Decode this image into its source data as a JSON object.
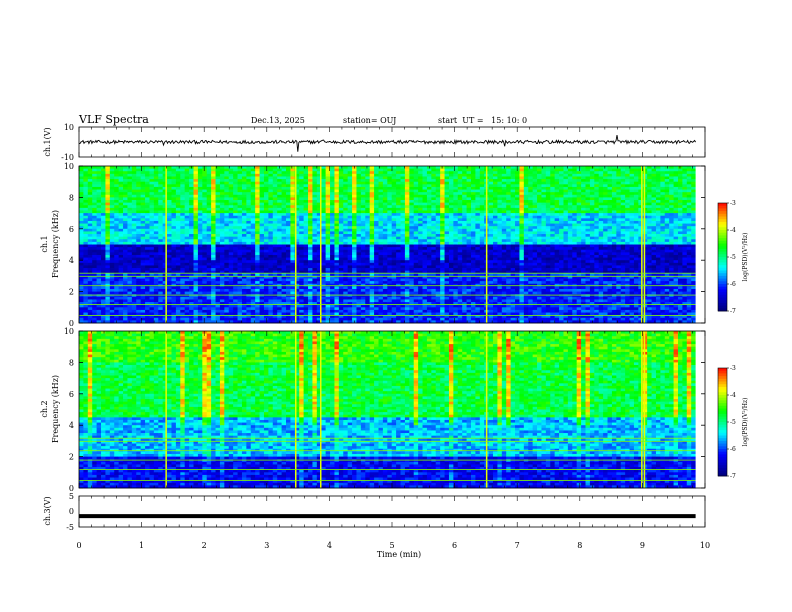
{
  "header": {
    "title": "VLF Spectra",
    "date": "Dec.13, 2025",
    "station": "station= OUJ",
    "start": "start  UT =   15: 10: 0"
  },
  "chart_data": [
    {
      "panel": "ch1-waveform",
      "type": "line",
      "ylabel": "ch.1(V)",
      "ylim": [
        -10,
        10
      ],
      "yticks": [
        "10",
        "-10"
      ],
      "baseline": 0,
      "color": "#000000"
    },
    {
      "panel": "ch1-spectrogram",
      "type": "heatmap",
      "ylabel": "ch.1\nFrequency (kHz)",
      "ylabel_line1": "ch.1",
      "ylabel_line2": "Frequency (kHz)",
      "ylim": [
        0,
        10
      ],
      "yticks": [
        "0",
        "2",
        "4",
        "6",
        "8",
        "10"
      ],
      "colorbar": {
        "label": "log(PSD)(V²/Hz)",
        "ticks": [
          "-3",
          "-4",
          "-5",
          "-6",
          "-7"
        ],
        "range": [
          -7,
          -3
        ]
      }
    },
    {
      "panel": "ch2-spectrogram",
      "type": "heatmap",
      "ylabel_line1": "ch.2",
      "ylabel_line2": "Frequency (kHz)",
      "ylim": [
        0,
        10
      ],
      "yticks": [
        "0",
        "2",
        "4",
        "6",
        "8",
        "10"
      ],
      "colorbar": {
        "label": "log(PSD)(V²/Hz)",
        "ticks": [
          "-3",
          "-4",
          "-5",
          "-6",
          "-7"
        ],
        "range": [
          -7,
          -3
        ]
      }
    },
    {
      "panel": "ch3-waveform",
      "type": "line",
      "ylabel": "ch.3(V)",
      "ylim": [
        -5,
        5
      ],
      "yticks": [
        "5",
        "0",
        "-5"
      ],
      "baseline": -1.5,
      "color": "#000000"
    }
  ],
  "xaxis": {
    "label": "Time (min)",
    "xlim": [
      0,
      10
    ],
    "ticks": [
      "0",
      "1",
      "2",
      "3",
      "4",
      "5",
      "6",
      "7",
      "8",
      "9",
      "10"
    ]
  },
  "colors": {
    "colormap": [
      "#00007a",
      "#0000ff",
      "#00ffff",
      "#00ff00",
      "#ffff00",
      "#ff0000"
    ]
  }
}
